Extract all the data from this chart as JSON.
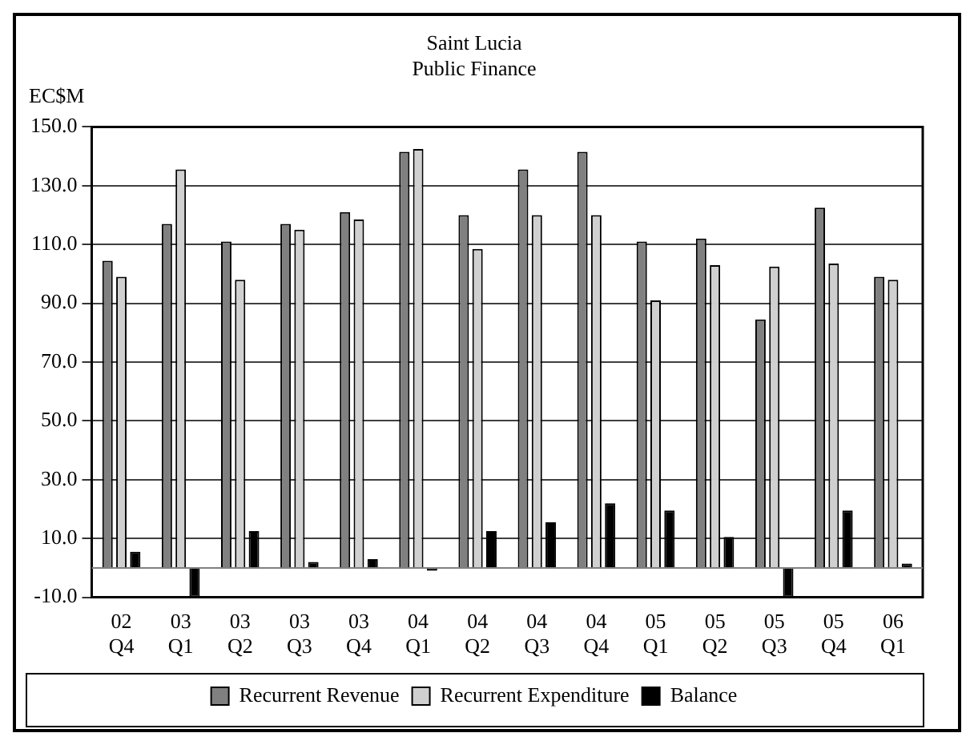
{
  "chart_data": {
    "type": "bar",
    "title": [
      "Saint Lucia",
      "Public Finance"
    ],
    "ylabel": "EC$M",
    "categories": [
      "02 Q4",
      "03 Q1",
      "03 Q2",
      "03 Q3",
      "03 Q4",
      "04 Q1",
      "04 Q2",
      "04 Q3",
      "04 Q4",
      "05 Q1",
      "05 Q2",
      "05 Q3",
      "05 Q4",
      "06 Q1"
    ],
    "series": [
      {
        "name": "Recurrent Revenue",
        "color": "#808080",
        "values": [
          104.5,
          117,
          111,
          117,
          121,
          141.5,
          120,
          135.5,
          141.5,
          111,
          112,
          84.5,
          122.5,
          99
        ]
      },
      {
        "name": "Recurrent Expenditure",
        "color": "#d0d0d0",
        "values": [
          99,
          135.5,
          98,
          115,
          118.5,
          142.5,
          108.5,
          120,
          120,
          91,
          103,
          102.5,
          103.5,
          98
        ]
      },
      {
        "name": "Balance",
        "color": "#000000",
        "values": [
          5.5,
          -10,
          12.5,
          2,
          3,
          -1,
          12.5,
          15.5,
          22,
          19.5,
          10.5,
          -10,
          19.5,
          1.5
        ]
      }
    ],
    "ylim": [
      -10,
      150
    ],
    "yticks": [
      {
        "value": -10,
        "label": "-10.0"
      },
      {
        "value": 10,
        "label": "10.0"
      },
      {
        "value": 30,
        "label": "30.0"
      },
      {
        "value": 50,
        "label": "50.0"
      },
      {
        "value": 70,
        "label": "70.0"
      },
      {
        "value": 90,
        "label": "90.0"
      },
      {
        "value": 110,
        "label": "110.0"
      },
      {
        "value": 130,
        "label": "130.0"
      },
      {
        "value": 150,
        "label": "150.0"
      }
    ],
    "grid": "y",
    "legend": "bottom"
  }
}
